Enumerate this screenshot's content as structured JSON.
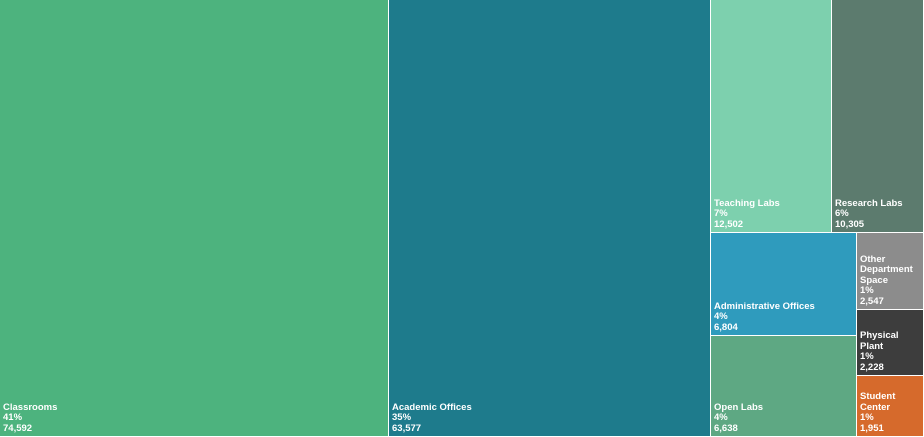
{
  "chart_data": {
    "type": "treemap",
    "title": "",
    "items": [
      {
        "label": "Classrooms",
        "percent": "41%",
        "value": 74592,
        "value_label": "74,592",
        "color": "#4db37e"
      },
      {
        "label": "Academic Offices",
        "percent": "35%",
        "value": 63577,
        "value_label": "63,577",
        "color": "#1e7b8c"
      },
      {
        "label": "Teaching Labs",
        "percent": "7%",
        "value": 12502,
        "value_label": "12,502",
        "color": "#7dd0ae"
      },
      {
        "label": "Research Labs",
        "percent": "6%",
        "value": 10305,
        "value_label": "10,305",
        "color": "#5c7b6e"
      },
      {
        "label": "Administrative Offices",
        "percent": "4%",
        "value": 6804,
        "value_label": "6,804",
        "color": "#2f9bbd"
      },
      {
        "label": "Open Labs",
        "percent": "4%",
        "value": 6638,
        "value_label": "6,638",
        "color": "#5ea883"
      },
      {
        "label": "Other Department Space",
        "percent": "1%",
        "value": 2547,
        "value_label": "2,547",
        "color": "#8c8c8c"
      },
      {
        "label": "Physical Plant",
        "percent": "1%",
        "value": 2228,
        "value_label": "2,228",
        "color": "#3d3d3d"
      },
      {
        "label": "Student Center",
        "percent": "1%",
        "value": 1951,
        "value_label": "1,951",
        "color": "#d66a2c"
      }
    ]
  }
}
